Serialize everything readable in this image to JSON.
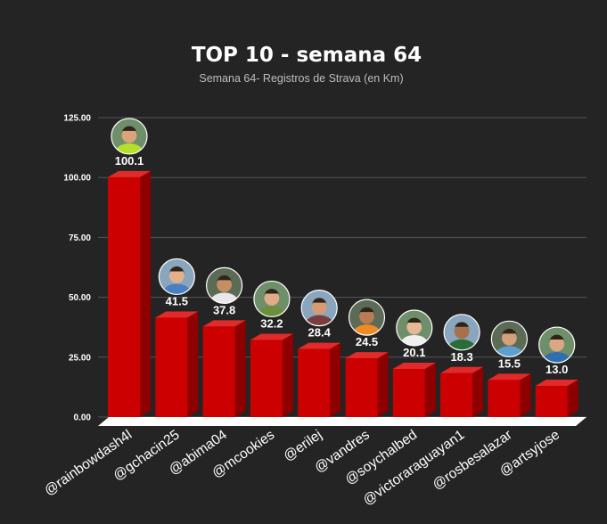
{
  "chart_data": {
    "type": "bar",
    "title": "TOP 10 - semana 64",
    "subtitle": "Semana 64- Registros de Strava (en Km)",
    "categories": [
      "@rainbowdash4l",
      "@gchacin25",
      "@abima04",
      "@mcookies",
      "@erilej",
      "@vandres",
      "@soychalbed",
      "@victoraraguayan1",
      "@rosbesalazar",
      "@artsyjose"
    ],
    "values": [
      100.1,
      41.5,
      37.8,
      32.2,
      28.4,
      24.5,
      20.1,
      18.3,
      15.5,
      13.0
    ],
    "value_labels": [
      "100.1",
      "41.5",
      "37.8",
      "32.2",
      "28.4",
      "24.5",
      "20.1",
      "18.3",
      "15.5",
      "13.0"
    ],
    "yticks": [
      "0.00",
      "25.00",
      "50.00",
      "75.00",
      "100.00",
      "125.00"
    ],
    "ylim": [
      0,
      125
    ],
    "grid": true,
    "bar_style": "3d",
    "colors": {
      "background": "#242424",
      "bar_front": "#cc0000",
      "bar_side": "#8e0000",
      "bar_top": "#e32a2a",
      "grid": "#555555",
      "floor": "#ffffff"
    },
    "avatars": [
      "avatar-icon",
      "avatar-icon",
      "avatar-icon",
      "avatar-icon",
      "avatar-icon",
      "avatar-icon",
      "avatar-icon",
      "avatar-icon",
      "avatar-icon",
      "avatar-icon"
    ]
  }
}
